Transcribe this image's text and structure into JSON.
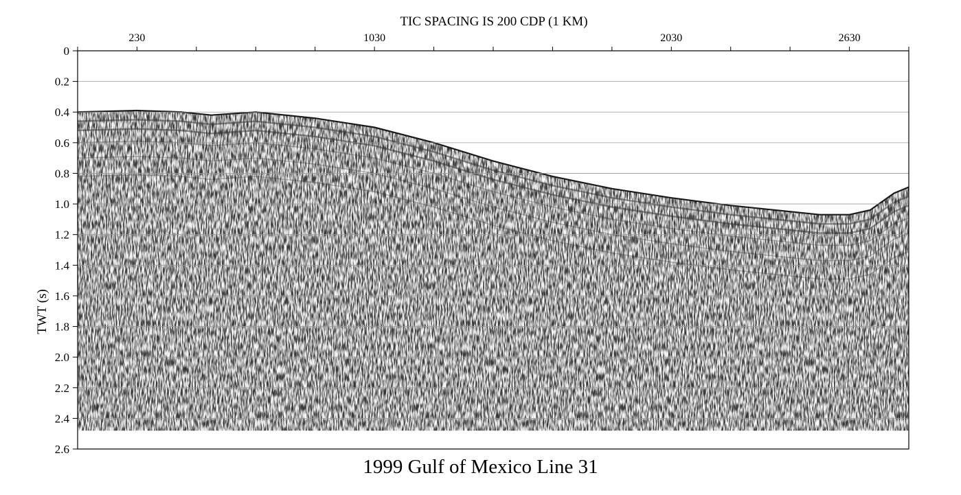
{
  "chart_data": {
    "type": "seismic-section",
    "title": "1999 Gulf of Mexico Line 31",
    "top_label": "TIC SPACING IS 200 CDP (1 KM)",
    "xlabel": "",
    "ylabel": "TWT (s)",
    "ylim": [
      0,
      2.6
    ],
    "yticks": [
      "0",
      "0.2",
      "0.4",
      "0.6",
      "0.8",
      "1.0",
      "1.2",
      "1.4",
      "1.6",
      "1.8",
      "2.0",
      "2.2",
      "2.4",
      "2.6"
    ],
    "xtick_labels": [
      {
        "cdp": 230,
        "label": "230"
      },
      {
        "cdp": 1030,
        "label": "1030"
      },
      {
        "cdp": 2030,
        "label": "2030"
      },
      {
        "cdp": 2630,
        "label": "2630"
      }
    ],
    "xlim": [
      30,
      2830
    ],
    "tic_spacing_cdp": 200,
    "grid": true,
    "data_bottom_twt": 2.48,
    "seafloor": {
      "cdp": [
        30,
        230,
        380,
        480,
        630,
        830,
        1030,
        1230,
        1430,
        1630,
        1830,
        2030,
        2230,
        2430,
        2530,
        2630,
        2700,
        2780,
        2830
      ],
      "twt": [
        0.4,
        0.39,
        0.4,
        0.42,
        0.4,
        0.44,
        0.5,
        0.6,
        0.72,
        0.82,
        0.9,
        0.96,
        1.01,
        1.05,
        1.07,
        1.07,
        1.04,
        0.93,
        0.89
      ]
    },
    "reflector_offsets_s": [
      0.06,
      0.12,
      0.2,
      0.3,
      0.42
    ],
    "colors": {
      "trace": "#3a3a3a",
      "grid": "#9a9a9a",
      "axis": "#000000"
    }
  }
}
